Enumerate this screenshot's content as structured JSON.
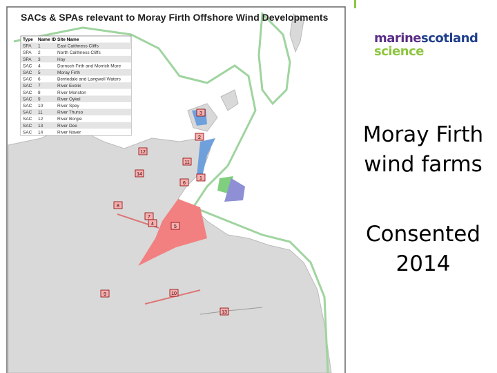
{
  "map": {
    "title": "SACs & SPAs relevant to Moray Firth Offshore Wind Developments",
    "table": {
      "header": [
        "Type",
        "Name ID",
        "Site Name"
      ],
      "rows": [
        [
          "SPA",
          "1",
          "East Caithness Cliffs"
        ],
        [
          "SPA",
          "2",
          "North Caithness Cliffs"
        ],
        [
          "SPA",
          "3",
          "Hoy"
        ],
        [
          "SAC",
          "4",
          "Dornoch Firth and Morrich More"
        ],
        [
          "SAC",
          "5",
          "Moray Firth"
        ],
        [
          "SAC",
          "6",
          "Berriedale and Langwell Waters"
        ],
        [
          "SAC",
          "7",
          "River Evelix"
        ],
        [
          "SAC",
          "8",
          "River Moriston"
        ],
        [
          "SAC",
          "9",
          "River Oykel"
        ],
        [
          "SAC",
          "10",
          "River Spey"
        ],
        [
          "SAC",
          "11",
          "River Thurso"
        ],
        [
          "SAC",
          "12",
          "River Borgie"
        ],
        [
          "SAC",
          "13",
          "River Dee"
        ],
        [
          "SAC",
          "14",
          "River Naver"
        ]
      ]
    },
    "labels": [
      "3",
      "2",
      "12",
      "11",
      "14",
      "6",
      "1",
      "8",
      "7",
      "4",
      "5",
      "9",
      "10",
      "13"
    ]
  },
  "logo": {
    "line1a": "marine",
    "line1b": "scotland",
    "line2": "science"
  },
  "slide": {
    "heading": "Moray Firth wind farms",
    "subheading": "Consented 2014"
  }
}
